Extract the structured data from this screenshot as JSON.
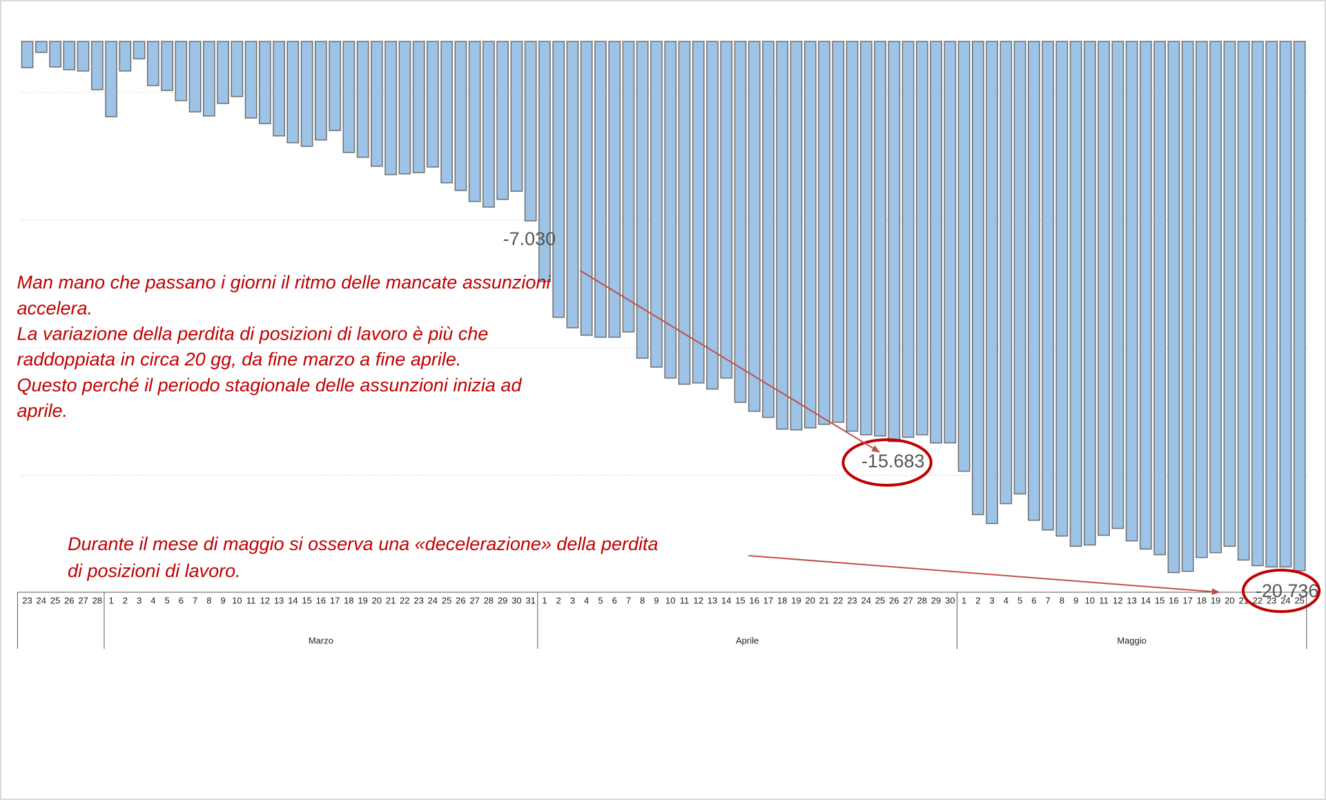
{
  "chart_data": {
    "type": "bar",
    "groups": [
      {
        "label": null,
        "categories": [
          "23",
          "24",
          "25",
          "26",
          "27",
          "28"
        ]
      },
      {
        "label": "Marzo",
        "categories": [
          "1",
          "2",
          "3",
          "4",
          "5",
          "6",
          "7",
          "8",
          "9",
          "10",
          "11",
          "12",
          "13",
          "14",
          "15",
          "16",
          "17",
          "18",
          "19",
          "20",
          "21",
          "22",
          "23",
          "24",
          "25",
          "26",
          "27",
          "28",
          "29",
          "30",
          "31"
        ]
      },
      {
        "label": "Aprile",
        "categories": [
          "1",
          "2",
          "3",
          "4",
          "5",
          "6",
          "7",
          "8",
          "9",
          "10",
          "11",
          "12",
          "13",
          "14",
          "15",
          "16",
          "17",
          "18",
          "19",
          "20",
          "21",
          "22",
          "23",
          "24",
          "25",
          "26",
          "27",
          "28",
          "29",
          "30"
        ]
      },
      {
        "label": "Maggio",
        "categories": [
          "1",
          "2",
          "3",
          "4",
          "5",
          "6",
          "7",
          "8",
          "9",
          "10",
          "11",
          "12",
          "13",
          "14",
          "15",
          "16",
          "17",
          "18",
          "19",
          "20",
          "21",
          "22",
          "23",
          "24",
          "25"
        ]
      }
    ],
    "values": [
      -1030,
      -430,
      -1000,
      -1110,
      -1160,
      -1890,
      -2950,
      -1160,
      -680,
      -1730,
      -1920,
      -2320,
      -2760,
      -2920,
      -2430,
      -2160,
      -3000,
      -3220,
      -3700,
      -3970,
      -4110,
      -3860,
      -3490,
      -4350,
      -4540,
      -4890,
      -5220,
      -5190,
      -5140,
      -4920,
      -5540,
      -5840,
      -6270,
      -6490,
      -6190,
      -5870,
      -7030,
      -9410,
      -10810,
      -11220,
      -11510,
      -11590,
      -11590,
      -11380,
      -12410,
      -12760,
      -13190,
      -13430,
      -13380,
      -13620,
      -13190,
      -14140,
      -14490,
      -14730,
      -15190,
      -15220,
      -15140,
      -15000,
      -14920,
      -15270,
      -15410,
      -15460,
      -15683,
      -15510,
      -15410,
      -15730,
      -15730,
      -16840,
      -18540,
      -18890,
      -18110,
      -17730,
      -18760,
      -19140,
      -19380,
      -19780,
      -19730,
      -19350,
      -19080,
      -19570,
      -19890,
      -20110,
      -20810,
      -20760,
      -20220,
      -20030,
      -19780,
      -20320,
      -20540,
      -20590,
      -20590,
      -20736
    ],
    "value_labels": {
      "36": "-7.030",
      "62": "-15.683",
      "91": "-20.736"
    },
    "color": "#9dc3e6",
    "ylim": [
      -21500,
      0
    ],
    "yticks": [
      -17000,
      -12000,
      -7000,
      -2000
    ],
    "grid": true,
    "annotations": [
      {
        "lines": [
          "Man mano che passano i giorni il ritmo delle mancate assunzioni",
          "accelera.",
          "La variazione della perdita di posizioni di lavoro è più che",
          "raddoppiata in circa 20 gg, da fine marzo a fine aprile.",
          "Questo perché il periodo stagionale delle assunzioni inizia ad",
          "aprile."
        ]
      },
      {
        "lines": [
          "Durante il mese di maggio si osserva una «decelerazione» della perdita",
          "di posizioni di lavoro."
        ]
      }
    ]
  }
}
